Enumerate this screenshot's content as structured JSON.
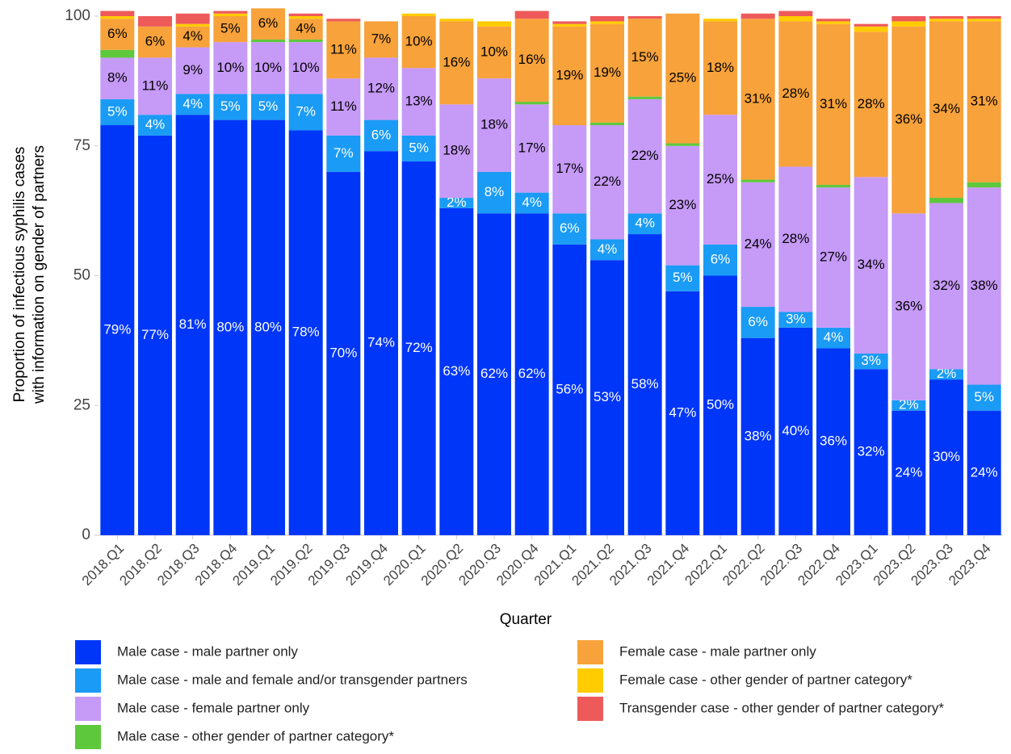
{
  "chart_data": {
    "type": "stacked-bar",
    "x_label": "Quarter",
    "y_label": [
      "Proportion of infectious syphilis cases",
      "with information on gender of partners"
    ],
    "categories": [
      "2018.Q1",
      "2018.Q2",
      "2018.Q3",
      "2018.Q4",
      "2019.Q1",
      "2019.Q2",
      "2019.Q3",
      "2019.Q4",
      "2020.Q1",
      "2020.Q2",
      "2020.Q3",
      "2020.Q4",
      "2021.Q1",
      "2021.Q2",
      "2021.Q3",
      "2021.Q4",
      "2022.Q1",
      "2022.Q2",
      "2022.Q3",
      "2022.Q4",
      "2023.Q1",
      "2023.Q2",
      "2023.Q3",
      "2023.Q4"
    ],
    "ylim": [
      0,
      100
    ],
    "yticks": [
      0,
      25,
      50,
      75,
      100
    ],
    "series": [
      {
        "name": "Male case - male partner only",
        "color": "#0036f8",
        "label_color": "#ffffff",
        "values": [
          79,
          77,
          81,
          80,
          80,
          78,
          70,
          74,
          72,
          63,
          62,
          62,
          56,
          53,
          58,
          47,
          50,
          38,
          40,
          36,
          32,
          24,
          30,
          24
        ],
        "value_labels": [
          "79%",
          "77%",
          "81%",
          "80%",
          "80%",
          "78%",
          "70%",
          "74%",
          "72%",
          "63%",
          "62%",
          "62%",
          "56%",
          "53%",
          "58%",
          "47%",
          "50%",
          "38%",
          "40%",
          "36%",
          "32%",
          "24%",
          "30%",
          "24%"
        ]
      },
      {
        "name": "Male case - male and female and/or transgender partners",
        "color": "#1a9bf5",
        "label_color": "#ffffff",
        "values": [
          5,
          4,
          4,
          5,
          5,
          7,
          7,
          6,
          5,
          2,
          8,
          4,
          6,
          4,
          4,
          5,
          6,
          6,
          3,
          4,
          3,
          2,
          2,
          5
        ],
        "value_labels": [
          "5%",
          "4%",
          "4%",
          "5%",
          "5%",
          "7%",
          "7%",
          "6%",
          "5%",
          "2%",
          "8%",
          "4%",
          "6%",
          "4%",
          "4%",
          "5%",
          "6%",
          "6%",
          "3%",
          "4%",
          "3%",
          "2%",
          "2%",
          "5%"
        ]
      },
      {
        "name": "Male case - female partner only",
        "color": "#c69af7",
        "label_color": "#000000",
        "values": [
          8,
          11,
          9,
          10,
          10,
          10,
          11,
          12,
          13,
          18,
          18,
          17,
          17,
          22,
          22,
          23,
          25,
          24,
          28,
          27,
          34,
          36,
          32,
          38
        ],
        "value_labels": [
          "8%",
          "11%",
          "9%",
          "10%",
          "10%",
          "10%",
          "11%",
          "12%",
          "13%",
          "18%",
          "18%",
          "17%",
          "17%",
          "22%",
          "22%",
          "23%",
          "25%",
          "24%",
          "28%",
          "27%",
          "34%",
          "36%",
          "32%",
          "38%"
        ]
      },
      {
        "name": "Male case - other gender of partner category*",
        "color": "#5ec83c",
        "values": [
          1.5,
          0,
          0,
          0,
          0.5,
          0.5,
          0,
          0,
          0,
          0,
          0,
          0.5,
          0,
          0.5,
          0.5,
          0.5,
          0,
          0.5,
          0,
          0.5,
          0,
          0,
          1,
          1
        ]
      },
      {
        "name": "Female case - male partner only",
        "color": "#f7a23a",
        "label_color": "#000000",
        "values": [
          6,
          6,
          4,
          5,
          6,
          4,
          11,
          7,
          10,
          16,
          10,
          16,
          19,
          19,
          15,
          25,
          18,
          31,
          28,
          31,
          28,
          36,
          34,
          31
        ],
        "value_labels": [
          "6%",
          "6%",
          "4%",
          "5%",
          "6%",
          "4%",
          "11%",
          "7%",
          "10%",
          "16%",
          "10%",
          "16%",
          "19%",
          "19%",
          "15%",
          "25%",
          "18%",
          "31%",
          "28%",
          "31%",
          "28%",
          "36%",
          "34%",
          "31%"
        ]
      },
      {
        "name": "Female case - other gender of partner category*",
        "color": "#ffcc00",
        "values": [
          0.5,
          0,
          0.5,
          0.5,
          0,
          0.5,
          0,
          0,
          0.5,
          0.5,
          1,
          0,
          0.5,
          0.5,
          0,
          0,
          0.5,
          0,
          1,
          0.5,
          1,
          1,
          0.5,
          0.5
        ]
      },
      {
        "name": "Transgender case - other gender of partner category*",
        "color": "#ee5a5a",
        "values": [
          1,
          2,
          2,
          0.5,
          0,
          0.5,
          0.5,
          0,
          0,
          0,
          0,
          1.5,
          0.5,
          1,
          0.5,
          0,
          0,
          1,
          1,
          0.5,
          0.5,
          1,
          0.5,
          0.5
        ]
      }
    ]
  }
}
